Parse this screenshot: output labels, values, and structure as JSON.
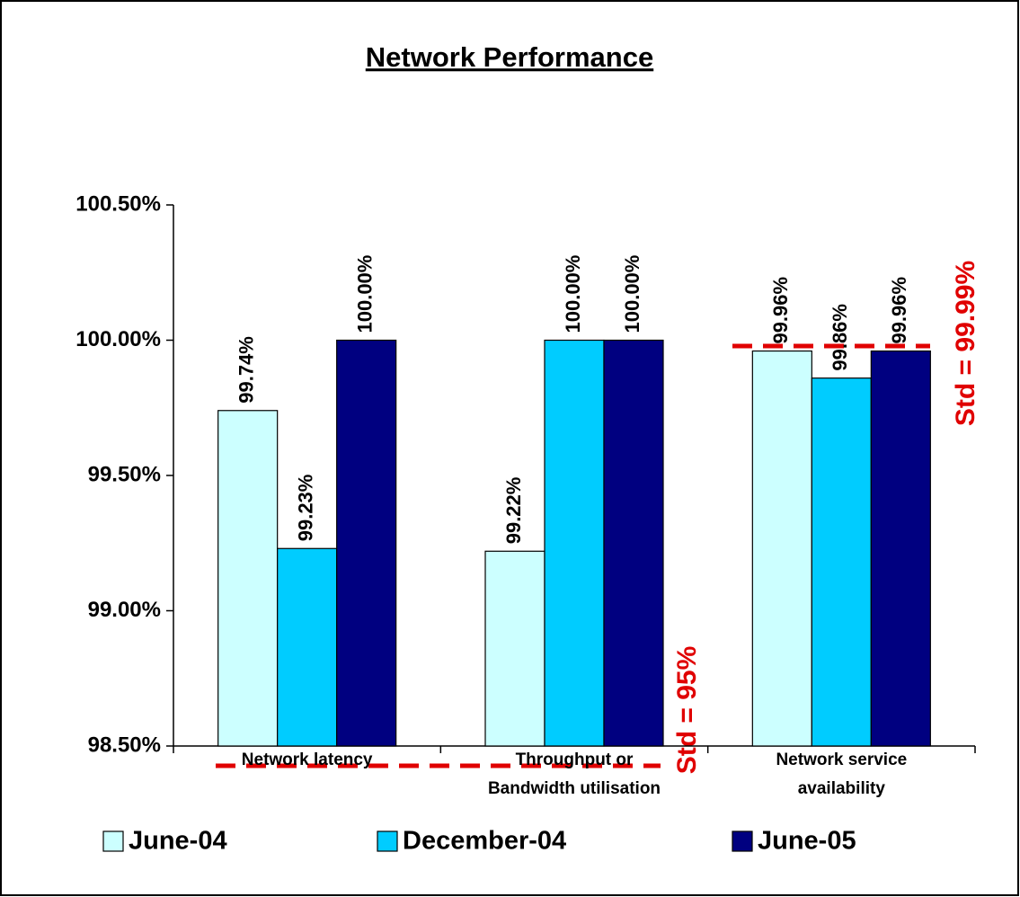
{
  "chart_data": {
    "type": "bar",
    "title": "Network Performance",
    "categories": [
      "Network latency",
      "Throughput or\nBandwidth utilisation",
      "Network service\navailability"
    ],
    "series": [
      {
        "name": "June-04",
        "color": "#ccffff",
        "values": [
          99.74,
          99.22,
          99.96
        ],
        "value_labels": [
          "99.74%",
          "99.22%",
          "99.96%"
        ]
      },
      {
        "name": "December-04",
        "color": "#00ccff",
        "values": [
          99.23,
          100.0,
          99.86
        ],
        "value_labels": [
          "99.23%",
          "100.00%",
          "99.86%"
        ]
      },
      {
        "name": "June-05",
        "color": "#000080",
        "values": [
          100.0,
          100.0,
          99.96
        ],
        "value_labels": [
          "100.00%",
          "100.00%",
          "99.96%"
        ]
      }
    ],
    "ylim": [
      98.5,
      100.5
    ],
    "yticks": [
      {
        "value": 98.5,
        "label": "98.50%"
      },
      {
        "value": 99.0,
        "label": "99.00%"
      },
      {
        "value": 99.5,
        "label": "99.50%"
      },
      {
        "value": 100.0,
        "label": "100.00%"
      },
      {
        "value": 100.5,
        "label": "100.50%"
      }
    ],
    "annotations": [
      "Std = 95%",
      "Std = 99.99%"
    ],
    "legend": "bottom"
  }
}
